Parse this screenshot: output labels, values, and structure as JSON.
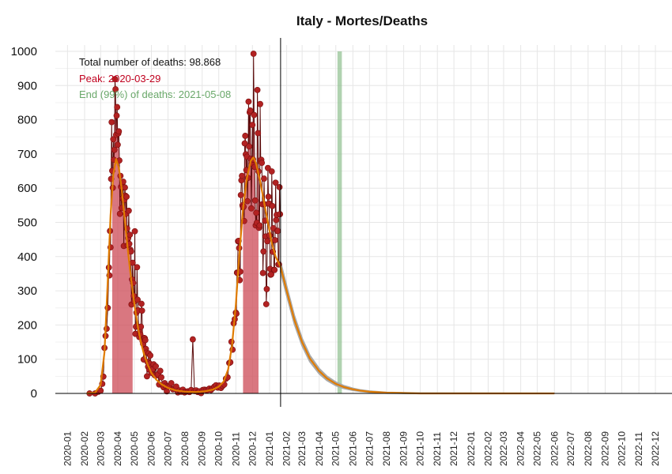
{
  "chart_data": {
    "type": "line",
    "title": "Italy - Mortes/Deaths",
    "xlabel": "",
    "ylabel": "",
    "ylim": [
      0,
      1000
    ],
    "yticks": [
      0,
      100,
      200,
      300,
      400,
      500,
      600,
      700,
      800,
      900,
      1000
    ],
    "xlim": [
      "2019-12-10",
      "2022-12-31"
    ],
    "xticks": [
      "2020-01",
      "2020-02",
      "2020-03",
      "2020-04",
      "2020-05",
      "2020-06",
      "2020-07",
      "2020-08",
      "2020-09",
      "2020-10",
      "2020-11",
      "2020-12",
      "2021-01",
      "2021-02",
      "2021-03",
      "2021-04",
      "2021-05",
      "2021-06",
      "2021-07",
      "2021-08",
      "2021-09",
      "2021-10",
      "2021-11",
      "2021-12",
      "2022-01",
      "2022-02",
      "2022-03",
      "2022-04",
      "2022-05",
      "2022-06",
      "2022-07",
      "2022-08",
      "2022-09",
      "2022-10",
      "2022-11",
      "2022-12"
    ],
    "grid": true,
    "today": "2021-01-21",
    "end_band": [
      "2021-05-04",
      "2021-05-12"
    ],
    "annotations": {
      "total": "Total number of deaths: 98.868",
      "peak": "Peak: 2020-03-29",
      "end": "End (99%) of deaths: 2021-05-08"
    },
    "colors": {
      "observed": "#b22222",
      "fit": "#e07b00",
      "fill": "#cc4a56",
      "band": "#8fbf8f",
      "ci": "#a9a9a9",
      "peak_text": "#c0001e",
      "end_text": "#6aa86a"
    },
    "observed": [
      [
        "2020-02-10",
        0
      ],
      [
        "2020-02-20",
        0
      ],
      [
        "2020-02-26",
        5
      ],
      [
        "2020-03-01",
        8
      ],
      [
        "2020-03-04",
        28
      ],
      [
        "2020-03-06",
        49
      ],
      [
        "2020-03-08",
        133
      ],
      [
        "2020-03-10",
        168
      ],
      [
        "2020-03-12",
        189
      ],
      [
        "2020-03-14",
        250
      ],
      [
        "2020-03-16",
        368
      ],
      [
        "2020-03-17",
        345
      ],
      [
        "2020-03-18",
        475
      ],
      [
        "2020-03-19",
        427
      ],
      [
        "2020-03-20",
        627
      ],
      [
        "2020-03-21",
        793
      ],
      [
        "2020-03-22",
        651
      ],
      [
        "2020-03-23",
        601
      ],
      [
        "2020-03-24",
        743
      ],
      [
        "2020-03-25",
        683
      ],
      [
        "2020-03-26",
        712
      ],
      [
        "2020-03-27",
        919
      ],
      [
        "2020-03-28",
        889
      ],
      [
        "2020-03-29",
        756
      ],
      [
        "2020-03-30",
        812
      ],
      [
        "2020-03-31",
        837
      ],
      [
        "2020-04-01",
        727
      ],
      [
        "2020-04-02",
        760
      ],
      [
        "2020-04-03",
        766
      ],
      [
        "2020-04-04",
        681
      ],
      [
        "2020-04-05",
        525
      ],
      [
        "2020-04-06",
        636
      ],
      [
        "2020-04-07",
        604
      ],
      [
        "2020-04-08",
        542
      ],
      [
        "2020-04-09",
        610
      ],
      [
        "2020-04-10",
        570
      ],
      [
        "2020-04-11",
        619
      ],
      [
        "2020-04-12",
        431
      ],
      [
        "2020-04-13",
        566
      ],
      [
        "2020-04-14",
        602
      ],
      [
        "2020-04-15",
        578
      ],
      [
        "2020-04-16",
        525
      ],
      [
        "2020-04-17",
        575
      ],
      [
        "2020-04-18",
        482
      ],
      [
        "2020-04-19",
        433
      ],
      [
        "2020-04-20",
        454
      ],
      [
        "2020-04-21",
        534
      ],
      [
        "2020-04-22",
        437
      ],
      [
        "2020-04-23",
        464
      ],
      [
        "2020-04-24",
        420
      ],
      [
        "2020-04-25",
        415
      ],
      [
        "2020-04-26",
        260
      ],
      [
        "2020-04-27",
        333
      ],
      [
        "2020-04-28",
        382
      ],
      [
        "2020-04-29",
        323
      ],
      [
        "2020-04-30",
        285
      ],
      [
        "2020-05-01",
        269
      ],
      [
        "2020-05-02",
        474
      ],
      [
        "2020-05-03",
        174
      ],
      [
        "2020-05-04",
        195
      ],
      [
        "2020-05-05",
        236
      ],
      [
        "2020-05-06",
        369
      ],
      [
        "2020-05-07",
        274
      ],
      [
        "2020-05-08",
        243
      ],
      [
        "2020-05-09",
        194
      ],
      [
        "2020-05-10",
        165
      ],
      [
        "2020-05-11",
        179
      ],
      [
        "2020-05-12",
        172
      ],
      [
        "2020-05-13",
        195
      ],
      [
        "2020-05-14",
        262
      ],
      [
        "2020-05-15",
        242
      ],
      [
        "2020-05-16",
        153
      ],
      [
        "2020-05-17",
        145
      ],
      [
        "2020-05-18",
        99
      ],
      [
        "2020-05-19",
        162
      ],
      [
        "2020-05-20",
        161
      ],
      [
        "2020-05-21",
        156
      ],
      [
        "2020-05-22",
        130
      ],
      [
        "2020-05-23",
        119
      ],
      [
        "2020-05-24",
        50
      ],
      [
        "2020-05-25",
        92
      ],
      [
        "2020-05-26",
        78
      ],
      [
        "2020-05-27",
        117
      ],
      [
        "2020-05-28",
        70
      ],
      [
        "2020-05-29",
        87
      ],
      [
        "2020-05-30",
        111
      ],
      [
        "2020-05-31",
        75
      ],
      [
        "2020-06-01",
        60
      ],
      [
        "2020-06-03",
        71
      ],
      [
        "2020-06-05",
        85
      ],
      [
        "2020-06-07",
        53
      ],
      [
        "2020-06-09",
        79
      ],
      [
        "2020-06-11",
        53
      ],
      [
        "2020-06-13",
        56
      ],
      [
        "2020-06-15",
        26
      ],
      [
        "2020-06-17",
        66
      ],
      [
        "2020-06-19",
        47
      ],
      [
        "2020-06-21",
        24
      ],
      [
        "2020-06-23",
        18
      ],
      [
        "2020-06-25",
        30
      ],
      [
        "2020-06-27",
        22
      ],
      [
        "2020-06-29",
        6
      ],
      [
        "2020-07-01",
        21
      ],
      [
        "2020-07-04",
        21
      ],
      [
        "2020-07-07",
        30
      ],
      [
        "2020-07-10",
        12
      ],
      [
        "2020-07-13",
        13
      ],
      [
        "2020-07-16",
        20
      ],
      [
        "2020-07-19",
        3
      ],
      [
        "2020-07-22",
        9
      ],
      [
        "2020-07-25",
        5
      ],
      [
        "2020-07-28",
        11
      ],
      [
        "2020-07-31",
        3
      ],
      [
        "2020-08-03",
        5
      ],
      [
        "2020-08-06",
        6
      ],
      [
        "2020-08-09",
        4
      ],
      [
        "2020-08-12",
        10
      ],
      [
        "2020-08-15",
        158
      ],
      [
        "2020-08-18",
        7
      ],
      [
        "2020-08-21",
        9
      ],
      [
        "2020-08-24",
        4
      ],
      [
        "2020-08-27",
        6
      ],
      [
        "2020-08-30",
        1
      ],
      [
        "2020-09-02",
        10
      ],
      [
        "2020-09-05",
        11
      ],
      [
        "2020-09-08",
        10
      ],
      [
        "2020-09-11",
        10
      ],
      [
        "2020-09-14",
        14
      ],
      [
        "2020-09-17",
        10
      ],
      [
        "2020-09-20",
        15
      ],
      [
        "2020-09-23",
        20
      ],
      [
        "2020-09-26",
        24
      ],
      [
        "2020-09-29",
        17
      ],
      [
        "2020-10-02",
        23
      ],
      [
        "2020-10-05",
        16
      ],
      [
        "2020-10-08",
        22
      ],
      [
        "2020-10-11",
        26
      ],
      [
        "2020-10-14",
        43
      ],
      [
        "2020-10-17",
        47
      ],
      [
        "2020-10-20",
        89
      ],
      [
        "2020-10-22",
        91
      ],
      [
        "2020-10-24",
        151
      ],
      [
        "2020-10-26",
        128
      ],
      [
        "2020-10-28",
        205
      ],
      [
        "2020-10-30",
        217
      ],
      [
        "2020-11-01",
        236
      ],
      [
        "2020-11-02",
        233
      ],
      [
        "2020-11-03",
        353
      ],
      [
        "2020-11-04",
        352
      ],
      [
        "2020-11-05",
        445
      ],
      [
        "2020-11-06",
        446
      ],
      [
        "2020-11-07",
        425
      ],
      [
        "2020-11-08",
        331
      ],
      [
        "2020-11-09",
        356
      ],
      [
        "2020-11-10",
        580
      ],
      [
        "2020-11-11",
        623
      ],
      [
        "2020-11-12",
        636
      ],
      [
        "2020-11-13",
        550
      ],
      [
        "2020-11-14",
        544
      ],
      [
        "2020-11-15",
        546
      ],
      [
        "2020-11-16",
        504
      ],
      [
        "2020-11-17",
        731
      ],
      [
        "2020-11-18",
        753
      ],
      [
        "2020-11-19",
        699
      ],
      [
        "2020-11-20",
        653
      ],
      [
        "2020-11-21",
        692
      ],
      [
        "2020-11-22",
        562
      ],
      [
        "2020-11-23",
        630
      ],
      [
        "2020-11-24",
        853
      ],
      [
        "2020-11-25",
        722
      ],
      [
        "2020-11-26",
        822
      ],
      [
        "2020-11-27",
        827
      ],
      [
        "2020-11-28",
        686
      ],
      [
        "2020-11-29",
        541
      ],
      [
        "2020-11-30",
        672
      ],
      [
        "2020-12-01",
        785
      ],
      [
        "2020-12-02",
        684
      ],
      [
        "2020-12-03",
        993
      ],
      [
        "2020-12-04",
        814
      ],
      [
        "2020-12-05",
        662
      ],
      [
        "2020-12-06",
        564
      ],
      [
        "2020-12-07",
        491
      ],
      [
        "2020-12-08",
        528
      ],
      [
        "2020-12-09",
        499
      ],
      [
        "2020-12-10",
        887
      ],
      [
        "2020-12-11",
        761
      ],
      [
        "2020-12-12",
        649
      ],
      [
        "2020-12-13",
        484
      ],
      [
        "2020-12-14",
        491
      ],
      [
        "2020-12-15",
        846
      ],
      [
        "2020-12-16",
        680
      ],
      [
        "2020-12-17",
        683
      ],
      [
        "2020-12-18",
        674
      ],
      [
        "2020-12-19",
        553
      ],
      [
        "2020-12-20",
        352
      ],
      [
        "2020-12-21",
        415
      ],
      [
        "2020-12-22",
        628
      ],
      [
        "2020-12-23",
        553
      ],
      [
        "2020-12-24",
        505
      ],
      [
        "2020-12-25",
        459
      ],
      [
        "2020-12-26",
        261
      ],
      [
        "2020-12-27",
        305
      ],
      [
        "2020-12-28",
        445
      ],
      [
        "2020-12-29",
        659
      ],
      [
        "2020-12-30",
        575
      ],
      [
        "2020-12-31",
        555
      ],
      [
        "2021-01-01",
        462
      ],
      [
        "2021-01-02",
        364
      ],
      [
        "2021-01-03",
        347
      ],
      [
        "2021-01-04",
        348
      ],
      [
        "2021-01-05",
        649
      ],
      [
        "2021-01-06",
        548
      ],
      [
        "2021-01-07",
        414
      ],
      [
        "2021-01-08",
        483
      ],
      [
        "2021-01-09",
        361
      ],
      [
        "2021-01-10",
        361
      ],
      [
        "2021-01-11",
        448
      ],
      [
        "2021-01-12",
        616
      ],
      [
        "2021-01-13",
        507
      ],
      [
        "2021-01-14",
        522
      ],
      [
        "2021-01-15",
        475
      ],
      [
        "2021-01-16",
        475
      ],
      [
        "2021-01-17",
        377
      ],
      [
        "2021-01-18",
        377
      ],
      [
        "2021-01-19",
        603
      ],
      [
        "2021-01-20",
        524
      ]
    ],
    "fit": [
      [
        "2020-02-05",
        0
      ],
      [
        "2020-02-20",
        2
      ],
      [
        "2020-03-01",
        25
      ],
      [
        "2020-03-08",
        120
      ],
      [
        "2020-03-14",
        330
      ],
      [
        "2020-03-19",
        520
      ],
      [
        "2020-03-24",
        640
      ],
      [
        "2020-03-29",
        685
      ],
      [
        "2020-04-03",
        660
      ],
      [
        "2020-04-08",
        600
      ],
      [
        "2020-04-13",
        520
      ],
      [
        "2020-04-18",
        440
      ],
      [
        "2020-04-23",
        365
      ],
      [
        "2020-04-28",
        300
      ],
      [
        "2020-05-03",
        240
      ],
      [
        "2020-05-08",
        190
      ],
      [
        "2020-05-13",
        150
      ],
      [
        "2020-05-18",
        118
      ],
      [
        "2020-05-25",
        85
      ],
      [
        "2020-06-01",
        60
      ],
      [
        "2020-06-10",
        40
      ],
      [
        "2020-06-20",
        26
      ],
      [
        "2020-07-01",
        16
      ],
      [
        "2020-07-15",
        9
      ],
      [
        "2020-08-01",
        5
      ],
      [
        "2020-08-20",
        4
      ],
      [
        "2020-09-05",
        6
      ],
      [
        "2020-09-20",
        11
      ],
      [
        "2020-10-01",
        20
      ],
      [
        "2020-10-10",
        35
      ],
      [
        "2020-10-18",
        70
      ],
      [
        "2020-10-25",
        140
      ],
      [
        "2020-11-01",
        260
      ],
      [
        "2020-11-07",
        400
      ],
      [
        "2020-11-14",
        540
      ],
      [
        "2020-11-21",
        630
      ],
      [
        "2020-11-28",
        680
      ],
      [
        "2020-12-03",
        690
      ],
      [
        "2020-12-08",
        670
      ],
      [
        "2020-12-15",
        620
      ],
      [
        "2020-12-22",
        560
      ],
      [
        "2020-12-29",
        500
      ],
      [
        "2021-01-05",
        440
      ],
      [
        "2021-01-12",
        400
      ],
      [
        "2021-01-21",
        370
      ],
      [
        "2021-02-01",
        300
      ],
      [
        "2021-02-15",
        215
      ],
      [
        "2021-03-01",
        150
      ],
      [
        "2021-03-15",
        102
      ],
      [
        "2021-04-01",
        65
      ],
      [
        "2021-04-15",
        44
      ],
      [
        "2021-05-01",
        28
      ],
      [
        "2021-05-15",
        19
      ],
      [
        "2021-06-01",
        12
      ],
      [
        "2021-06-15",
        8
      ],
      [
        "2021-07-01",
        5
      ],
      [
        "2021-08-01",
        2
      ],
      [
        "2021-09-01",
        1
      ],
      [
        "2021-10-01",
        0
      ],
      [
        "2022-06-01",
        0
      ]
    ],
    "ci_width": [
      [
        "2021-01-21",
        14
      ],
      [
        "2021-02-15",
        12
      ],
      [
        "2021-03-15",
        9
      ],
      [
        "2021-04-15",
        6
      ],
      [
        "2021-05-15",
        4
      ],
      [
        "2021-06-15",
        2
      ],
      [
        "2021-08-01",
        1
      ],
      [
        "2022-06-01",
        0
      ]
    ]
  }
}
